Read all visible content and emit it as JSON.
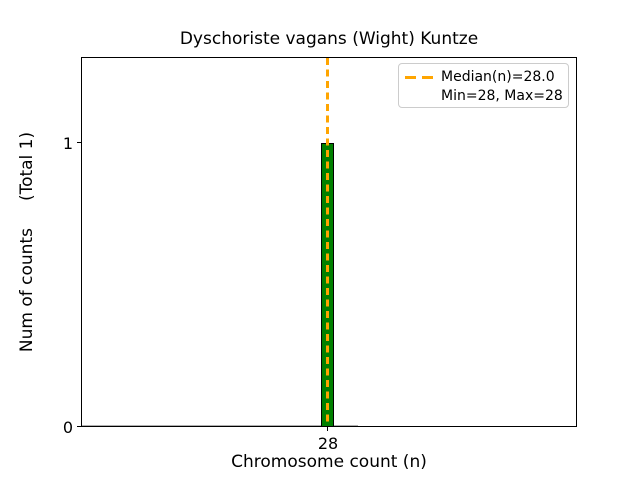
{
  "chart_data": {
    "type": "bar",
    "title": "Dyschoriste vagans (Wight) Kuntze",
    "xlabel": "Chromosome count (n)",
    "ylabel": "Num of counts     (Total 1)",
    "total_label": "(Total 1)",
    "categories": [
      "28"
    ],
    "values": [
      1
    ],
    "x_ticks": [
      "28"
    ],
    "y_ticks": [
      "0",
      "1"
    ],
    "ylim": [
      0,
      1.3
    ],
    "grid": false,
    "bar_color": "#008000",
    "bar_edgecolor": "#000000",
    "median_line": {
      "value": 28.0,
      "color": "#ffa500",
      "linestyle": "dashed"
    },
    "stats": {
      "median": 28.0,
      "min": 28,
      "max": 28,
      "total_counts": 1
    },
    "legend": {
      "position": "upper right",
      "entries": [
        {
          "label": "Median(n)=28.0",
          "marker": "orange-dashed-line",
          "color": "#ffa500"
        },
        {
          "label": "Min=28, Max=28",
          "marker": "none"
        }
      ]
    }
  }
}
